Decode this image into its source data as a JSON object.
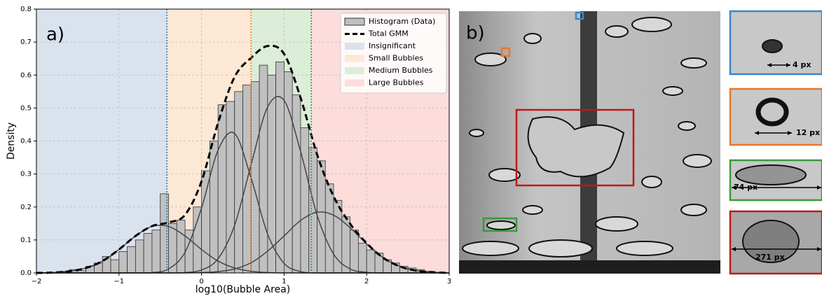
{
  "chart_data": {
    "type": "histogram",
    "panel_label": "a)",
    "x_label": "log10(Bubble Area)",
    "y_label": "Density",
    "xlim": [
      -2,
      3
    ],
    "ylim": [
      0,
      0.8
    ],
    "xticks": [
      {
        "value": -2,
        "label": "−2"
      },
      {
        "value": -1,
        "label": "−1"
      },
      0,
      1,
      2,
      3
    ],
    "yticks": [
      {
        "value": 0,
        "label": "0.0"
      },
      0.1,
      0.2,
      0.3,
      0.4,
      0.5,
      0.6,
      0.7,
      0.8
    ],
    "grid": true,
    "legend": "upper right",
    "histogram": {
      "name": "Histogram (Data)",
      "color": "#c0c0c0",
      "bins": [
        -2,
        -1.9,
        -1.8,
        -1.7,
        -1.6,
        -1.5,
        -1.4,
        -1.3,
        -1.2,
        -1.1,
        -1,
        -0.9,
        -0.8,
        -0.7,
        -0.6,
        -0.5,
        -0.4,
        -0.3,
        -0.2,
        -0.1,
        0,
        0.1,
        0.2,
        0.3,
        0.4,
        0.5,
        0.6,
        0.7,
        0.8,
        0.9,
        1,
        1.1,
        1.2,
        1.3,
        1.4,
        1.5,
        1.6,
        1.7,
        1.8,
        1.9,
        2,
        2.1,
        2.2,
        2.3,
        2.4,
        2.5,
        2.6,
        2.7,
        2.8,
        2.9,
        3
      ],
      "values": [
        0,
        0,
        0.002,
        0.005,
        0.01,
        0.007,
        0.02,
        0.03,
        0.05,
        0.04,
        0.065,
        0.08,
        0.1,
        0.12,
        0.13,
        0.24,
        0.15,
        0.16,
        0.13,
        0.2,
        0.31,
        0.4,
        0.51,
        0.52,
        0.55,
        0.57,
        0.58,
        0.63,
        0.6,
        0.64,
        0.61,
        0.54,
        0.44,
        0.38,
        0.34,
        0.27,
        0.22,
        0.17,
        0.13,
        0.09,
        0.07,
        0.06,
        0.04,
        0.03,
        0.02,
        0.015,
        0.01,
        0.005,
        0.002,
        0
      ]
    },
    "x": [
      -2,
      -1.8,
      -1.6,
      -1.4,
      -1.2,
      -1,
      -0.8,
      -0.6,
      -0.4,
      -0.2,
      0,
      0.2,
      0.4,
      0.6,
      0.8,
      1,
      1.2,
      1.4,
      1.6,
      1.8,
      2,
      2.2,
      2.4,
      2.6,
      2.8,
      3
    ],
    "total": {
      "name": "Total GMM",
      "color": "#000000",
      "values": [
        0,
        0.001,
        0.005,
        0.015,
        0.036,
        0.071,
        0.112,
        0.142,
        0.153,
        0.176,
        0.278,
        0.455,
        0.594,
        0.652,
        0.688,
        0.664,
        0.531,
        0.359,
        0.232,
        0.149,
        0.09,
        0.046,
        0.02,
        0.007,
        0.002,
        0
      ]
    },
    "components": [
      {
        "color": "#444444",
        "values": [
          0,
          0.001,
          0.005,
          0.015,
          0.036,
          0.071,
          0.112,
          0.141,
          0.141,
          0.112,
          0.071,
          0.036,
          0.015,
          0.005,
          0.001,
          0,
          0,
          0,
          0,
          0,
          0,
          0,
          0,
          0,
          0,
          0
        ]
      },
      {
        "color": "#444444",
        "values": [
          0,
          0,
          0,
          0,
          0,
          0,
          0,
          0.001,
          0.012,
          0.063,
          0.197,
          0.372,
          0.423,
          0.288,
          0.118,
          0.029,
          0.004,
          0,
          0,
          0,
          0,
          0,
          0,
          0,
          0,
          0
        ]
      },
      {
        "color": "#444444",
        "values": [
          0,
          0,
          0,
          0,
          0,
          0,
          0,
          0,
          0,
          0.001,
          0.009,
          0.043,
          0.144,
          0.328,
          0.503,
          0.523,
          0.368,
          0.175,
          0.057,
          0.012,
          0.002,
          0,
          0,
          0,
          0,
          0
        ]
      },
      {
        "color": "#444444",
        "values": [
          0,
          0,
          0,
          0,
          0,
          0,
          0,
          0,
          0,
          0,
          0.001,
          0.004,
          0.012,
          0.031,
          0.066,
          0.112,
          0.159,
          0.184,
          0.175,
          0.137,
          0.088,
          0.046,
          0.02,
          0.007,
          0.002,
          0
        ]
      }
    ],
    "regions": [
      {
        "name": "Insignificant",
        "color": "#dae2ee",
        "line_color": "#1f77b4",
        "from": -2,
        "to": -0.42
      },
      {
        "name": "Small Bubbles",
        "color": "#fde7d5",
        "line_color": "#ff7f0e",
        "from": -0.42,
        "to": 0.6
      },
      {
        "name": "Medium Bubbles",
        "color": "#dcedd8",
        "line_color": "#2ca02c",
        "from": 0.6,
        "to": 1.33
      },
      {
        "name": "Large Bubbles",
        "color": "#fddcdc",
        "from": 1.33,
        "to": 3
      }
    ]
  },
  "image_panel": {
    "label": "b)",
    "insets": [
      {
        "label": "4 px",
        "color": "#3a86c8"
      },
      {
        "label": "12 px",
        "color": "#e8782a"
      },
      {
        "label": "74 px",
        "color": "#3a9a3a"
      },
      {
        "label": "271 px",
        "color": "#c01818"
      }
    ]
  }
}
